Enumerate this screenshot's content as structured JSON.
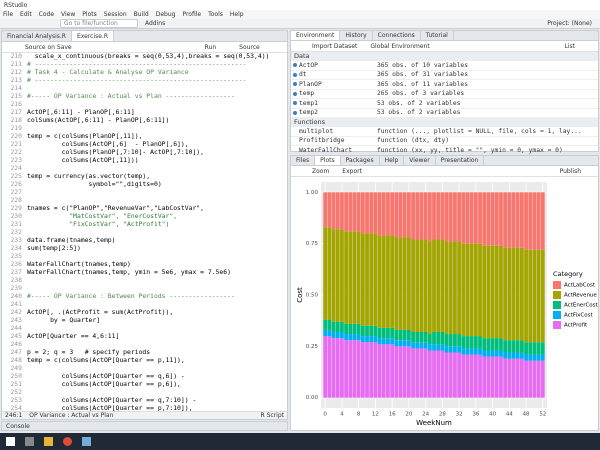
{
  "window": {
    "title": "RStudio",
    "menu": [
      "File",
      "Edit",
      "Code",
      "View",
      "Plots",
      "Session",
      "Build",
      "Debug",
      "Profile",
      "Tools",
      "Help"
    ],
    "goto": "Go to file/function",
    "addins": "Addins",
    "project": "Project: (None)"
  },
  "editor": {
    "tabs": [
      "Financial Analysis.R",
      "Exercise.R"
    ],
    "toolbar": [
      "Source on Save",
      "Run",
      "Source"
    ],
    "lines": [
      {
        "n": 210,
        "text": "  scale_x_continuous(breaks = seq(0,53,4),breaks = seq(0,53,4))"
      },
      {
        "n": 211,
        "text": "# -------------------------------------------------------"
      },
      {
        "n": 212,
        "text": "# Task 4 - Calculate & Analyse OP Variance"
      },
      {
        "n": 213,
        "text": "# -------------------------------------------------------"
      },
      {
        "n": 214
      },
      {
        "n": 215,
        "text": "#----- OP Variance : Actual vs Plan ------------------"
      },
      {
        "n": 216
      },
      {
        "n": 217,
        "text": "ActOP[,6:11] - PlanOP[,6:11]"
      },
      {
        "n": 218,
        "text": "colSums(ActOP[,6:11] - PlanOP[,6:11])"
      },
      {
        "n": 219
      },
      {
        "n": 220,
        "text": "temp = c(colSums(PlanOP[,11]),"
      },
      {
        "n": 221,
        "text": "         colSums(ActOP[,6]  - PlanOP[,6]),"
      },
      {
        "n": 222,
        "text": "         colSums(PlanOP[,7:10]- ActOP[,7:10]),"
      },
      {
        "n": 223,
        "text": "         colSums(ActOP[,11]))"
      },
      {
        "n": 224
      },
      {
        "n": 225,
        "text": "temp = currency(as.vector(temp),"
      },
      {
        "n": 226,
        "text": "                symbol=\"\",digits=0)"
      },
      {
        "n": 227
      },
      {
        "n": 228
      },
      {
        "n": 229,
        "text": "tnames = c(\"PlanOP\",\"RevenueVar\",\"LabCostVar\","
      },
      {
        "n": 230,
        "text": "           \"MatCostVar\", \"EnerCostVar\","
      },
      {
        "n": 231,
        "text": "           \"FixCostVar\", \"ActProfit\")"
      },
      {
        "n": 232
      },
      {
        "n": 233,
        "text": "data.frame(tnames,temp)"
      },
      {
        "n": 234,
        "text": "sum(temp[2:5])"
      },
      {
        "n": 235
      },
      {
        "n": 236,
        "text": "WaterFallChart(tnames,temp)"
      },
      {
        "n": 237,
        "text": "WaterFallChart(tnames,temp, ymin = 5e6, ymax = 7.5e6)"
      },
      {
        "n": 238
      },
      {
        "n": 239
      },
      {
        "n": 240,
        "text": "#----- OP Variance : Between Periods -----------------"
      },
      {
        "n": 241
      },
      {
        "n": 242,
        "text": "ActOP[, .(ActProfit = sum(ActProfit)),"
      },
      {
        "n": 243,
        "text": "      by = Quarter]"
      },
      {
        "n": 244
      },
      {
        "n": 245,
        "text": "ActOP[Quarter == 4,6:11]"
      },
      {
        "n": 246
      },
      {
        "n": 247,
        "text": "p = 2; q = 3   # specify periods"
      },
      {
        "n": 248,
        "text": "temp = c(colSums(ActOP[Quarter == p,11]),"
      },
      {
        "n": 249
      },
      {
        "n": 250,
        "text": "         colSums(ActOP[Quarter == q,6]) -"
      },
      {
        "n": 251,
        "text": "         colSums(ActOP[Quarter == p,6]),"
      },
      {
        "n": 252
      },
      {
        "n": 253,
        "text": "         colSums(ActOP[Quarter == q,7:10]) -"
      },
      {
        "n": 254,
        "text": "         colSums(ActOP[Quarter == p,7:10]),"
      },
      {
        "n": 255
      }
    ],
    "status": {
      "position": "246:1",
      "section": "OP Variance : Actual vs Plan",
      "filetype": "R Script"
    }
  },
  "console": {
    "tab": "Console"
  },
  "environment": {
    "tabs": [
      "Environment",
      "History",
      "Connections",
      "Tutorial"
    ],
    "toolbar": [
      "Import Dataset",
      "Global Environment",
      "List"
    ],
    "data_header": "Data",
    "data": [
      {
        "name": "ActOP",
        "value": "365 obs. of 10 variables"
      },
      {
        "name": "dt",
        "value": "365 obs. of 31 variables"
      },
      {
        "name": "PlanOP",
        "value": "365 obs. of 11 variables"
      },
      {
        "name": "temp",
        "value": "265 obs. of 3 variables"
      },
      {
        "name": "temp1",
        "value": "53 obs. of 2 variables"
      },
      {
        "name": "temp2",
        "value": "53 obs. of 2 variables"
      }
    ],
    "functions_header": "Functions",
    "functions": [
      {
        "name": "multiplot",
        "value": "function (..., plotlist = NULL, file, cols = 1, lay..."
      },
      {
        "name": "Profitbridge",
        "value": "function (dtx, dty)"
      },
      {
        "name": "WaterFallChart",
        "value": "function (xx, yy, title = \"\", ymin = 0, ymax = 0)"
      }
    ]
  },
  "plots_pane": {
    "tabs": [
      "Files",
      "Plots",
      "Packages",
      "Help",
      "Viewer",
      "Presentation"
    ],
    "toolbar": [
      "Zoom",
      "Export",
      "Publish"
    ]
  },
  "chart_data": {
    "type": "bar",
    "stacked": true,
    "xlabel": "WeekNum",
    "ylabel": "Cost",
    "legend_title": "Category",
    "grid": true,
    "x": [
      0,
      1,
      2,
      3,
      4,
      5,
      6,
      7,
      8,
      9,
      10,
      11,
      12,
      13,
      14,
      15,
      16,
      17,
      18,
      19,
      20,
      21,
      22,
      23,
      24,
      25,
      26,
      27,
      28,
      29,
      30,
      31,
      32,
      33,
      34,
      35,
      36,
      37,
      38,
      39,
      40,
      41,
      42,
      43,
      44,
      45,
      46,
      47,
      48,
      49,
      50,
      51,
      52
    ],
    "xlim": [
      -1,
      53
    ],
    "xticks": [
      0,
      4,
      8,
      12,
      16,
      20,
      24,
      28,
      32,
      36,
      40,
      44,
      48,
      52
    ],
    "ylim": [
      -0.05,
      1.05
    ],
    "yticks": [
      {
        "value": 0,
        "label": "0.00"
      },
      0.25,
      {
        "value": 0.5,
        "label": "0.50"
      },
      0.75,
      {
        "value": 1,
        "label": "1.00"
      }
    ],
    "series": [
      {
        "name": "ActLabCost",
        "color": "#F8766D",
        "values": [
          0.17,
          0.17,
          0.18,
          0.18,
          0.18,
          0.19,
          0.19,
          0.19,
          0.19,
          0.2,
          0.2,
          0.2,
          0.2,
          0.21,
          0.21,
          0.21,
          0.21,
          0.22,
          0.22,
          0.22,
          0.22,
          0.23,
          0.23,
          0.23,
          0.23,
          0.24,
          0.23,
          0.23,
          0.23,
          0.24,
          0.24,
          0.24,
          0.24,
          0.25,
          0.25,
          0.25,
          0.25,
          0.25,
          0.26,
          0.26,
          0.26,
          0.26,
          0.26,
          0.27,
          0.27,
          0.27,
          0.27,
          0.27,
          0.28,
          0.28,
          0.28,
          0.28,
          0.28
        ]
      },
      {
        "name": "ActRevenue",
        "color": "#A3A500",
        "values": [
          0.45,
          0.45,
          0.45,
          0.45,
          0.45,
          0.45,
          0.45,
          0.45,
          0.45,
          0.45,
          0.45,
          0.45,
          0.45,
          0.45,
          0.45,
          0.45,
          0.45,
          0.45,
          0.45,
          0.45,
          0.45,
          0.45,
          0.45,
          0.45,
          0.45,
          0.45,
          0.45,
          0.45,
          0.45,
          0.45,
          0.45,
          0.45,
          0.45,
          0.45,
          0.45,
          0.45,
          0.45,
          0.45,
          0.45,
          0.45,
          0.45,
          0.45,
          0.45,
          0.45,
          0.45,
          0.45,
          0.45,
          0.45,
          0.45,
          0.45,
          0.45,
          0.45,
          0.45
        ]
      },
      {
        "name": "ActEnerCost",
        "color": "#00BF7D",
        "values": [
          0.05,
          0.05,
          0.05,
          0.05,
          0.05,
          0.05,
          0.05,
          0.05,
          0.05,
          0.05,
          0.05,
          0.05,
          0.05,
          0.05,
          0.05,
          0.05,
          0.05,
          0.05,
          0.05,
          0.05,
          0.05,
          0.05,
          0.05,
          0.05,
          0.05,
          0.05,
          0.06,
          0.06,
          0.06,
          0.06,
          0.06,
          0.06,
          0.06,
          0.06,
          0.06,
          0.06,
          0.06,
          0.06,
          0.06,
          0.06,
          0.06,
          0.06,
          0.06,
          0.06,
          0.06,
          0.06,
          0.06,
          0.06,
          0.06,
          0.06,
          0.06,
          0.06,
          0.06
        ]
      },
      {
        "name": "ActFixCost",
        "color": "#00B0F6",
        "values": [
          0.03,
          0.03,
          0.03,
          0.03,
          0.03,
          0.03,
          0.03,
          0.03,
          0.03,
          0.03,
          0.03,
          0.03,
          0.03,
          0.03,
          0.03,
          0.03,
          0.03,
          0.03,
          0.03,
          0.03,
          0.03,
          0.03,
          0.03,
          0.03,
          0.03,
          0.03,
          0.03,
          0.03,
          0.03,
          0.03,
          0.03,
          0.03,
          0.03,
          0.03,
          0.03,
          0.03,
          0.03,
          0.03,
          0.03,
          0.03,
          0.03,
          0.03,
          0.03,
          0.03,
          0.03,
          0.03,
          0.03,
          0.03,
          0.03,
          0.03,
          0.03,
          0.03,
          0.03
        ]
      },
      {
        "name": "ActProfit",
        "color": "#E76BF3",
        "values": [
          0.3,
          0.3,
          0.29,
          0.29,
          0.29,
          0.28,
          0.28,
          0.28,
          0.28,
          0.27,
          0.27,
          0.27,
          0.27,
          0.26,
          0.26,
          0.26,
          0.26,
          0.25,
          0.25,
          0.25,
          0.25,
          0.24,
          0.24,
          0.24,
          0.24,
          0.23,
          0.23,
          0.23,
          0.23,
          0.22,
          0.22,
          0.22,
          0.22,
          0.21,
          0.21,
          0.21,
          0.21,
          0.21,
          0.2,
          0.2,
          0.2,
          0.2,
          0.2,
          0.19,
          0.19,
          0.19,
          0.19,
          0.19,
          0.18,
          0.18,
          0.18,
          0.18,
          0.18
        ]
      }
    ]
  }
}
